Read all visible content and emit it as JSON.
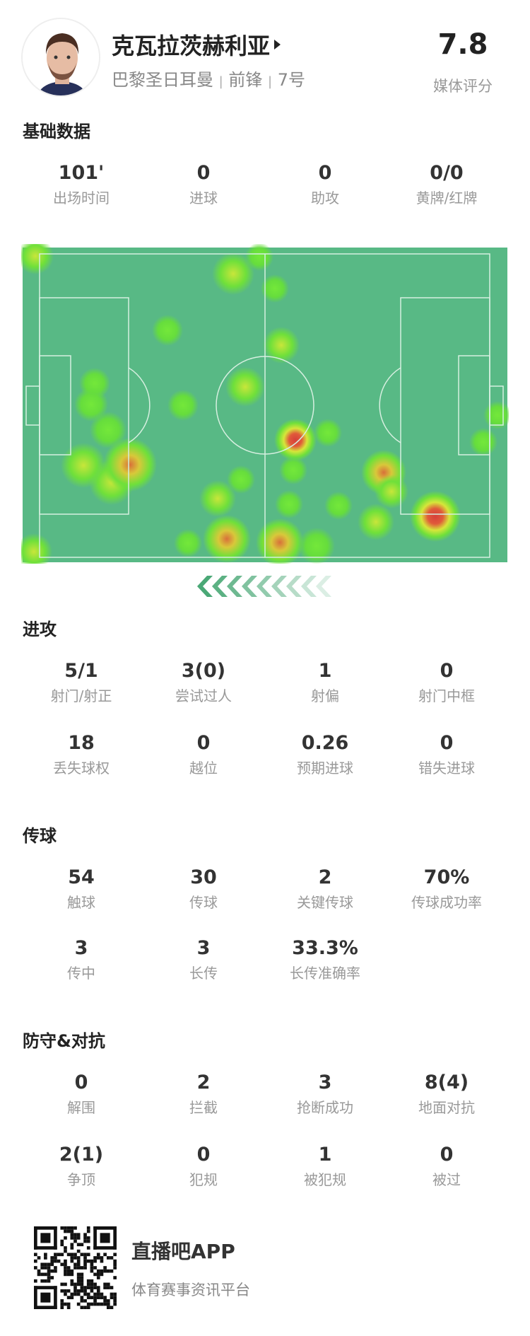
{
  "player": {
    "name": "克瓦拉茨赫利亚",
    "club": "巴黎圣日耳曼",
    "position": "前锋",
    "number": "7号",
    "rating": "7.8",
    "rating_label": "媒体评分"
  },
  "sections": [
    {
      "title": "基础数据",
      "rows": [
        [
          {
            "v": "101'",
            "l": "出场时间"
          },
          {
            "v": "0",
            "l": "进球"
          },
          {
            "v": "0",
            "l": "助攻"
          },
          {
            "v": "0/0",
            "l": "黄牌/红牌"
          }
        ]
      ]
    },
    {
      "title": "进攻",
      "rows": [
        [
          {
            "v": "5/1",
            "l": "射门/射正"
          },
          {
            "v": "3(0)",
            "l": "尝试过人"
          },
          {
            "v": "1",
            "l": "射偏"
          },
          {
            "v": "0",
            "l": "射门中框"
          }
        ],
        [
          {
            "v": "18",
            "l": "丢失球权"
          },
          {
            "v": "0",
            "l": "越位"
          },
          {
            "v": "0.26",
            "l": "预期进球"
          },
          {
            "v": "0",
            "l": "错失进球"
          }
        ]
      ]
    },
    {
      "title": "传球",
      "rows": [
        [
          {
            "v": "54",
            "l": "触球"
          },
          {
            "v": "30",
            "l": "传球"
          },
          {
            "v": "2",
            "l": "关键传球"
          },
          {
            "v": "70%",
            "l": "传球成功率"
          }
        ],
        [
          {
            "v": "3",
            "l": "传中"
          },
          {
            "v": "3",
            "l": "长传"
          },
          {
            "v": "33.3%",
            "l": "长传准确率"
          }
        ]
      ]
    },
    {
      "title": "防守&对抗",
      "rows": [
        [
          {
            "v": "0",
            "l": "解围"
          },
          {
            "v": "2",
            "l": "拦截"
          },
          {
            "v": "3",
            "l": "抢断成功"
          },
          {
            "v": "8(4)",
            "l": "地面对抗"
          }
        ],
        [
          {
            "v": "2(1)",
            "l": "争顶"
          },
          {
            "v": "0",
            "l": "犯规"
          },
          {
            "v": "1",
            "l": "被犯规"
          },
          {
            "v": "0",
            "l": "被过"
          }
        ]
      ]
    }
  ],
  "heatmap": {
    "pitch_color": "#58b985",
    "line_color": "#d6efe0",
    "attack_direction": "left"
  },
  "footer": {
    "app_name": "直播吧APP",
    "slogan": "体育赛事资讯平台"
  }
}
